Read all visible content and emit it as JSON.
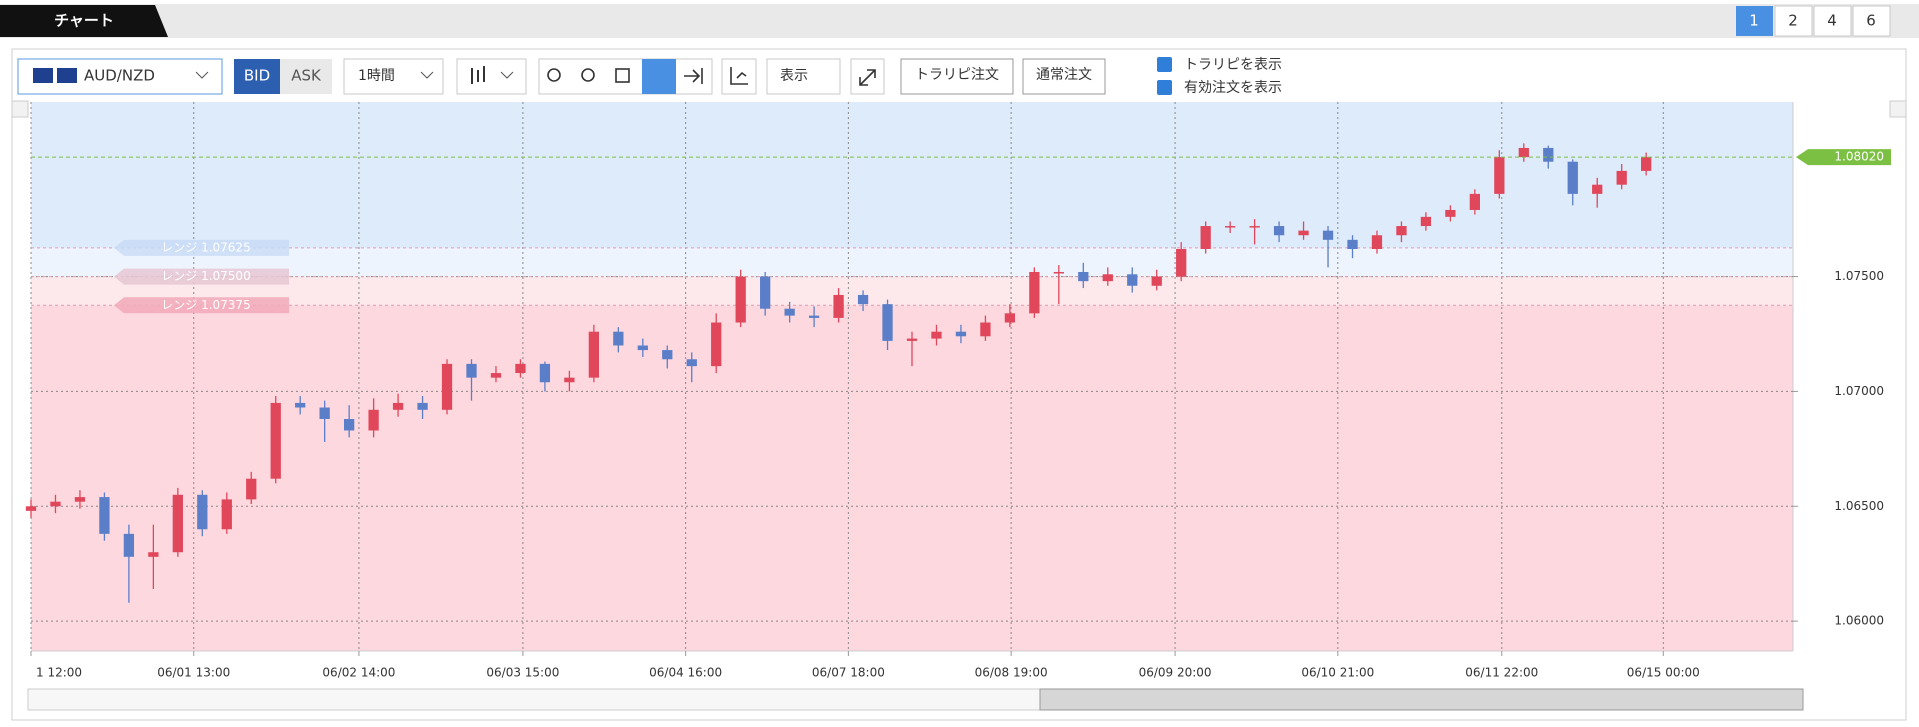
{
  "tab": "チャート",
  "pages": [
    "1",
    "2",
    "4",
    "6"
  ],
  "toolbar": {
    "pair": "AUD/NZD",
    "bid": "BID",
    "ask": "ASK",
    "interval": "1時間",
    "display": "表示",
    "trarepeat_order": "トラリピ注文",
    "normal_order": "通常注文",
    "checks": [
      "トラリピを表示",
      "有効注文を表示"
    ]
  },
  "chart_data": {
    "type": "candlestick",
    "up_color": "#e0475b",
    "down_color": "#5b7ec9",
    "open": [
      1.0648,
      1.065,
      1.0652,
      1.0654,
      1.0638,
      1.0628,
      1.063,
      1.0655,
      1.064,
      1.0653,
      1.0662,
      1.0695,
      1.0693,
      1.0688,
      1.0683,
      1.0692,
      1.0695,
      1.0692,
      1.0712,
      1.0706,
      1.0708,
      1.0712,
      1.0704,
      1.0706,
      1.0726,
      1.072,
      1.0718,
      1.0714,
      1.0711,
      1.073,
      1.075,
      1.0736,
      1.0733,
      1.0732,
      1.0742,
      1.0738,
      1.0722,
      1.0723,
      1.0726,
      1.0724,
      1.073,
      1.0734,
      1.0752,
      1.0752,
      1.0748,
      1.0751,
      1.0746,
      1.075,
      1.0762,
      1.0772,
      1.0772,
      1.0772,
      1.0768,
      1.077,
      1.0766,
      1.0762,
      1.0768,
      1.0772,
      1.0776,
      1.0779,
      1.0786,
      1.0802,
      1.0806,
      1.08,
      1.0786,
      1.079,
      1.0796
    ],
    "high": [
      1.0653,
      1.0655,
      1.0657,
      1.0656,
      1.0642,
      1.0642,
      1.0658,
      1.0657,
      1.0656,
      1.0665,
      1.0698,
      1.0698,
      1.0696,
      1.0694,
      1.0697,
      1.0699,
      1.0698,
      1.0714,
      1.0714,
      1.0711,
      1.0714,
      1.0713,
      1.0709,
      1.0729,
      1.0728,
      1.0723,
      1.072,
      1.0717,
      1.0734,
      1.0753,
      1.0752,
      1.0739,
      1.0737,
      1.0745,
      1.0744,
      1.074,
      1.0726,
      1.0729,
      1.0729,
      1.0733,
      1.0738,
      1.0754,
      1.0755,
      1.0756,
      1.0754,
      1.0754,
      1.0753,
      1.0765,
      1.0774,
      1.0774,
      1.0775,
      1.0774,
      1.0774,
      1.0772,
      1.0768,
      1.077,
      1.0774,
      1.0778,
      1.0781,
      1.0788,
      1.0805,
      1.0808,
      1.0807,
      1.0801,
      1.0793,
      1.0799,
      1.0804
    ],
    "low": [
      1.0645,
      1.0647,
      1.0649,
      1.0635,
      1.0608,
      1.0614,
      1.0628,
      1.0637,
      1.0638,
      1.0651,
      1.066,
      1.069,
      1.0678,
      1.068,
      1.068,
      1.0689,
      1.0688,
      1.069,
      1.0696,
      1.0704,
      1.0706,
      1.07,
      1.07,
      1.0704,
      1.0717,
      1.0715,
      1.071,
      1.0704,
      1.0708,
      1.0728,
      1.0733,
      1.073,
      1.0728,
      1.073,
      1.0735,
      1.0718,
      1.0711,
      1.072,
      1.0721,
      1.0722,
      1.0728,
      1.0732,
      1.0738,
      1.0745,
      1.0746,
      1.0743,
      1.0744,
      1.0748,
      1.076,
      1.0769,
      1.0764,
      1.0765,
      1.0766,
      1.0754,
      1.0758,
      1.076,
      1.0765,
      1.077,
      1.0774,
      1.0777,
      1.0784,
      1.08,
      1.0797,
      1.0781,
      1.078,
      1.0788,
      1.0794
    ],
    "close": [
      1.065,
      1.0652,
      1.0654,
      1.0638,
      1.0628,
      1.063,
      1.0655,
      1.064,
      1.0653,
      1.0662,
      1.0695,
      1.0693,
      1.0688,
      1.0683,
      1.0692,
      1.0695,
      1.0692,
      1.0712,
      1.0706,
      1.0708,
      1.0712,
      1.0704,
      1.0706,
      1.0726,
      1.072,
      1.0718,
      1.0714,
      1.0711,
      1.073,
      1.075,
      1.0736,
      1.0733,
      1.0732,
      1.0742,
      1.0738,
      1.0722,
      1.0723,
      1.0726,
      1.0724,
      1.073,
      1.0734,
      1.0752,
      1.0752,
      1.0748,
      1.0751,
      1.0746,
      1.075,
      1.0762,
      1.0772,
      1.0772,
      1.0772,
      1.0768,
      1.077,
      1.0766,
      1.0762,
      1.0768,
      1.0772,
      1.0776,
      1.0779,
      1.0786,
      1.0802,
      1.0806,
      1.08,
      1.0786,
      1.079,
      1.0796,
      1.0802
    ],
    "xlim": [
      0,
      72
    ],
    "xticks": [
      {
        "value": 0,
        "label": "1 12:00"
      },
      {
        "value": 6.65,
        "label": "06/01 13:00"
      },
      {
        "value": 13.4,
        "label": "06/02 14:00"
      },
      {
        "value": 20.1,
        "label": "06/03 15:00"
      },
      {
        "value": 26.75,
        "label": "06/04 16:00"
      },
      {
        "value": 33.4,
        "label": "06/07 18:00"
      },
      {
        "value": 40.05,
        "label": "06/08 19:00"
      },
      {
        "value": 46.75,
        "label": "06/09 20:00"
      },
      {
        "value": 53.4,
        "label": "06/10 21:00"
      },
      {
        "value": 60.1,
        "label": "06/11 22:00"
      },
      {
        "value": 66.7,
        "label": "06/15 00:00"
      }
    ],
    "ylim": [
      1.0587,
      1.0826
    ],
    "yticks": [
      {
        "value": 1.06,
        "label": "1.06000"
      },
      {
        "value": 1.065,
        "label": "1.06500"
      },
      {
        "value": 1.07,
        "label": "1.07000"
      },
      {
        "value": 1.075,
        "label": "1.07500"
      }
    ],
    "grid": true,
    "current_price": {
      "value": 1.0802,
      "label": "1.08020"
    },
    "ranges": [
      {
        "value": 1.07625,
        "label": "レンジ 1.07625"
      },
      {
        "value": 1.075,
        "label": "レンジ 1.07500"
      },
      {
        "value": 1.07375,
        "label": "レンジ 1.07375"
      }
    ]
  }
}
